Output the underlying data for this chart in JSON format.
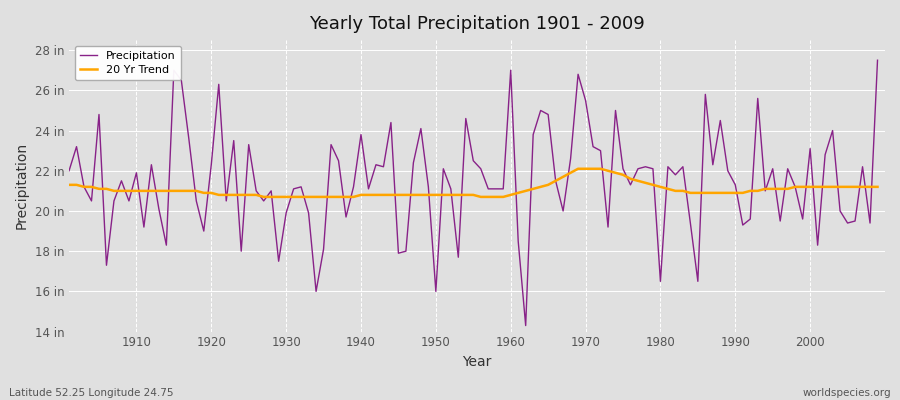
{
  "title": "Yearly Total Precipitation 1901 - 2009",
  "xlabel": "Year",
  "ylabel": "Precipitation",
  "ylim": [
    14,
    28.5
  ],
  "yticks": [
    14,
    16,
    18,
    20,
    22,
    24,
    26,
    28
  ],
  "ytick_labels": [
    "14 in",
    "16 in",
    "18 in",
    "20 in",
    "22 in",
    "24 in",
    "26 in",
    "28 in"
  ],
  "xlim": [
    1901,
    2010
  ],
  "background_color": "#e0e0e0",
  "plot_bg_color": "#e0e0e0",
  "precip_color": "#882288",
  "trend_color": "#FFA500",
  "legend_precip": "Precipitation",
  "legend_trend": "20 Yr Trend",
  "footnote_left": "Latitude 52.25 Longitude 24.75",
  "footnote_right": "worldspecies.org",
  "years": [
    1901,
    1902,
    1903,
    1904,
    1905,
    1906,
    1907,
    1908,
    1909,
    1910,
    1911,
    1912,
    1913,
    1914,
    1915,
    1916,
    1917,
    1918,
    1919,
    1920,
    1921,
    1922,
    1923,
    1924,
    1925,
    1926,
    1927,
    1928,
    1929,
    1930,
    1931,
    1932,
    1933,
    1934,
    1935,
    1936,
    1937,
    1938,
    1939,
    1940,
    1941,
    1942,
    1943,
    1944,
    1945,
    1946,
    1947,
    1948,
    1949,
    1950,
    1951,
    1952,
    1953,
    1954,
    1955,
    1956,
    1957,
    1958,
    1959,
    1960,
    1961,
    1962,
    1963,
    1964,
    1965,
    1966,
    1967,
    1968,
    1969,
    1970,
    1971,
    1972,
    1973,
    1974,
    1975,
    1976,
    1977,
    1978,
    1979,
    1980,
    1981,
    1982,
    1983,
    1984,
    1985,
    1986,
    1987,
    1988,
    1989,
    1990,
    1991,
    1992,
    1993,
    1994,
    1995,
    1996,
    1997,
    1998,
    1999,
    2000,
    2001,
    2002,
    2003,
    2004,
    2005,
    2006,
    2007,
    2008,
    2009
  ],
  "precip": [
    22.0,
    23.2,
    21.2,
    20.5,
    24.8,
    17.3,
    20.5,
    21.5,
    20.5,
    21.9,
    19.2,
    22.3,
    20.1,
    18.3,
    27.0,
    26.5,
    23.6,
    20.5,
    19.0,
    22.3,
    26.3,
    20.5,
    23.5,
    18.0,
    23.3,
    21.0,
    20.5,
    21.0,
    17.5,
    19.9,
    21.1,
    21.2,
    19.9,
    16.0,
    18.1,
    23.3,
    22.5,
    19.7,
    21.2,
    23.8,
    21.1,
    22.3,
    22.2,
    24.4,
    17.9,
    18.0,
    22.4,
    24.1,
    21.2,
    16.0,
    22.1,
    21.1,
    17.7,
    24.6,
    22.5,
    22.1,
    21.1,
    21.1,
    21.1,
    27.0,
    18.5,
    14.3,
    23.8,
    25.0,
    24.8,
    21.5,
    20.0,
    22.6,
    26.8,
    25.5,
    23.2,
    23.0,
    19.2,
    25.0,
    22.1,
    21.3,
    22.1,
    22.2,
    22.1,
    16.5,
    22.2,
    21.8,
    22.2,
    19.4,
    16.5,
    25.8,
    22.3,
    24.5,
    22.0,
    21.3,
    19.3,
    19.6,
    25.6,
    21.0,
    22.1,
    19.5,
    22.1,
    21.2,
    19.6,
    23.1,
    18.3,
    22.8,
    24.0,
    20.0,
    19.4,
    19.5,
    22.2,
    19.4,
    27.5
  ],
  "trend": [
    21.3,
    21.3,
    21.2,
    21.2,
    21.1,
    21.1,
    21.0,
    21.0,
    21.0,
    21.0,
    21.0,
    21.0,
    21.0,
    21.0,
    21.0,
    21.0,
    21.0,
    21.0,
    20.9,
    20.9,
    20.8,
    20.8,
    20.8,
    20.8,
    20.8,
    20.8,
    20.7,
    20.7,
    20.7,
    20.7,
    20.7,
    20.7,
    20.7,
    20.7,
    20.7,
    20.7,
    20.7,
    20.7,
    20.7,
    20.8,
    20.8,
    20.8,
    20.8,
    20.8,
    20.8,
    20.8,
    20.8,
    20.8,
    20.8,
    20.8,
    20.8,
    20.8,
    20.8,
    20.8,
    20.8,
    20.7,
    20.7,
    20.7,
    20.7,
    20.8,
    20.9,
    21.0,
    21.1,
    21.2,
    21.3,
    21.5,
    21.7,
    21.9,
    22.1,
    22.1,
    22.1,
    22.1,
    22.0,
    21.9,
    21.8,
    21.6,
    21.5,
    21.4,
    21.3,
    21.2,
    21.1,
    21.0,
    21.0,
    20.9,
    20.9,
    20.9,
    20.9,
    20.9,
    20.9,
    20.9,
    20.9,
    21.0,
    21.0,
    21.1,
    21.1,
    21.1,
    21.1,
    21.2,
    21.2,
    21.2,
    21.2,
    21.2,
    21.2,
    21.2,
    21.2,
    21.2,
    21.2,
    21.2,
    21.2
  ]
}
